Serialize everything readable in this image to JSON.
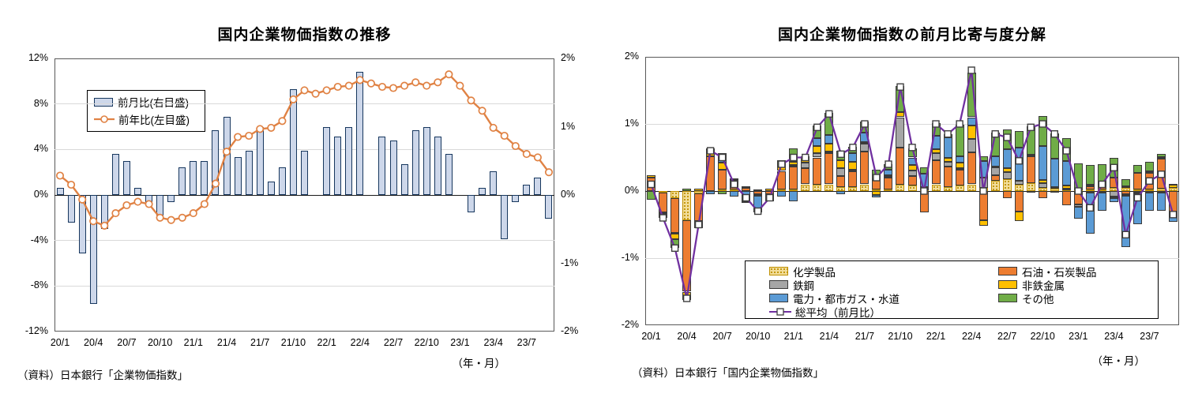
{
  "chart_data": [
    {
      "type": "bar+line",
      "title": "国内企業物価指数の推移",
      "source": "（資料）日本銀行「企業物価指数」",
      "axis_unit_note": "（年・月）",
      "categories": [
        "20/1",
        "20/2",
        "20/3",
        "20/4",
        "20/5",
        "20/6",
        "20/7",
        "20/8",
        "20/9",
        "20/10",
        "20/11",
        "20/12",
        "21/1",
        "21/2",
        "21/3",
        "21/4",
        "21/5",
        "21/6",
        "21/7",
        "21/8",
        "21/9",
        "21/10",
        "21/11",
        "21/12",
        "22/1",
        "22/2",
        "22/3",
        "22/4",
        "22/5",
        "22/6",
        "22/7",
        "22/8",
        "22/9",
        "22/10",
        "22/11",
        "22/12",
        "23/1",
        "23/2",
        "23/3",
        "23/4",
        "23/5",
        "23/6",
        "23/7",
        "23/8",
        "23/9"
      ],
      "x_tick_labels": [
        "20/1",
        "20/4",
        "20/7",
        "20/10",
        "21/1",
        "21/4",
        "21/7",
        "21/10",
        "22/1",
        "22/4",
        "22/7",
        "22/10",
        "23/1",
        "23/4",
        "23/7"
      ],
      "left_axis": {
        "min": -12,
        "max": 12,
        "tick_labels": [
          "12%",
          "8%",
          "4%",
          "0%",
          "-4%",
          "-8%",
          "-12%"
        ]
      },
      "right_axis": {
        "min": -2,
        "max": 2,
        "tick_labels": [
          "2%",
          "1%",
          "0%",
          "-1%",
          "-2%"
        ]
      },
      "grid": true,
      "legend_position": "upper-left-inside",
      "series": [
        {
          "name": "前月比(右目盛)",
          "type": "bar",
          "axis": "right",
          "fill": "#cdd7ea",
          "stroke": "#17375e",
          "values": [
            0.1,
            -0.4,
            -0.85,
            -1.6,
            -0.5,
            0.6,
            0.5,
            0.1,
            -0.1,
            -0.3,
            -0.1,
            0.4,
            0.5,
            0.5,
            0.95,
            1.15,
            0.55,
            0.65,
            1.0,
            0.2,
            0.4,
            1.55,
            0.65,
            0.0,
            1.0,
            0.85,
            1.0,
            1.8,
            0.0,
            0.85,
            0.8,
            0.45,
            0.95,
            1.0,
            0.85,
            0.6,
            0.0,
            -0.25,
            0.1,
            0.35,
            -0.65,
            -0.1,
            0.15,
            0.25,
            -0.35
          ]
        },
        {
          "name": "前年比(左目盛)",
          "type": "line",
          "axis": "left",
          "stroke": "#e08244",
          "marker": "circle",
          "values": [
            1.7,
            0.9,
            -0.4,
            -2.3,
            -2.7,
            -1.6,
            -0.9,
            -0.6,
            -0.8,
            -2.0,
            -2.2,
            -2.0,
            -1.6,
            -0.8,
            1.0,
            3.8,
            5.1,
            5.2,
            5.8,
            5.9,
            6.5,
            8.4,
            9.2,
            8.9,
            9.2,
            9.5,
            9.6,
            10.1,
            9.8,
            9.5,
            9.4,
            9.6,
            9.9,
            9.6,
            9.9,
            10.6,
            9.6,
            8.3,
            7.4,
            5.9,
            5.2,
            4.3,
            3.6,
            3.3,
            2.0
          ]
        }
      ]
    },
    {
      "type": "stacked-bar+line",
      "title": "国内企業物価指数の前月比寄与度分解",
      "source": "（資料）日本銀行「国内企業物価指数」",
      "axis_unit_note": "（年・月）",
      "categories": [
        "20/1",
        "20/2",
        "20/3",
        "20/4",
        "20/5",
        "20/6",
        "20/7",
        "20/8",
        "20/9",
        "20/10",
        "20/11",
        "20/12",
        "21/1",
        "21/2",
        "21/3",
        "21/4",
        "21/5",
        "21/6",
        "21/7",
        "21/8",
        "21/9",
        "21/10",
        "21/11",
        "21/12",
        "22/1",
        "22/2",
        "22/3",
        "22/4",
        "22/5",
        "22/6",
        "22/7",
        "22/8",
        "22/9",
        "22/10",
        "22/11",
        "22/12",
        "23/1",
        "23/2",
        "23/3",
        "23/4",
        "23/5",
        "23/6",
        "23/7",
        "23/8",
        "23/9"
      ],
      "x_tick_labels": [
        "20/1",
        "20/4",
        "20/7",
        "20/10",
        "21/1",
        "21/4",
        "21/7",
        "21/10",
        "22/1",
        "22/4",
        "22/7",
        "22/10",
        "23/1",
        "23/4",
        "23/7"
      ],
      "axis": {
        "min": -2,
        "max": 2,
        "tick_labels": [
          "2%",
          "1%",
          "0%",
          "-1%",
          "-2%"
        ]
      },
      "grid": true,
      "series": [
        {
          "name": "化学製品",
          "fill": "#f2dd9a",
          "pattern_dot_color": "#bf9000",
          "values": [
            0,
            -0.02,
            -0.1,
            -0.44,
            -0.03,
            0,
            0.02,
            0.02,
            0,
            0,
            0,
            0.02,
            0.02,
            0.1,
            0.1,
            0.1,
            0.06,
            0.06,
            0.1,
            0.02,
            0.02,
            0.1,
            0.08,
            0.02,
            0.1,
            0.06,
            0.08,
            0.1,
            0.05,
            0.15,
            0.18,
            0.1,
            0.12,
            0.05,
            0.03,
            0.02,
            0.02,
            0.02,
            0.02,
            0.05,
            0.05,
            0.02,
            0.02,
            0.03,
            0.05
          ]
        },
        {
          "name": "石油・石炭製品",
          "fill": "#ed7d31",
          "values": [
            0.2,
            -0.3,
            -0.52,
            -1.06,
            -0.42,
            0.52,
            0.3,
            0.1,
            0.05,
            -0.05,
            -0.05,
            0.28,
            0.35,
            0.24,
            0.4,
            0.47,
            0.16,
            0.24,
            0.49,
            0.14,
            0.18,
            0.55,
            0.14,
            -0.32,
            0.36,
            0.3,
            0.24,
            0.48,
            -0.44,
            0.08,
            -0.11,
            -0.3,
            0.4,
            -0.1,
            -0.02,
            -0.21,
            -0.2,
            0.05,
            0.07,
            0.15,
            -0.05,
            0.25,
            0.25,
            0.45,
            -0.35
          ]
        },
        {
          "name": "鉄鋼",
          "fill": "#a6a6a6",
          "values": [
            0,
            0,
            -0.02,
            0,
            -0.02,
            0,
            0,
            0,
            0,
            -0.02,
            0,
            0,
            0.02,
            0.08,
            0.07,
            0.02,
            0.12,
            0.02,
            0.12,
            0.02,
            0.02,
            0.45,
            0.09,
            0.02,
            0.1,
            0.08,
            0.02,
            0.2,
            0.15,
            0.12,
            0.1,
            0.05,
            -0.02,
            0.07,
            0.03,
            0.02,
            -0.04,
            -0.02,
            -0.02,
            -0.08,
            -0.02,
            -0.02,
            -0.02,
            -0.02,
            -0.02
          ]
        },
        {
          "name": "非鉄金属",
          "fill": "#ffc000",
          "values": [
            0.04,
            -0.02,
            -0.08,
            -0.12,
            0.04,
            0.05,
            0.1,
            0.04,
            0.02,
            0.02,
            0.03,
            0.06,
            0.05,
            0.09,
            0.1,
            0.12,
            0.12,
            0.12,
            0.02,
            -0.06,
            0.02,
            0.08,
            0.08,
            0.02,
            0.06,
            0.06,
            0.08,
            0.2,
            -0.08,
            0.02,
            0.06,
            -0.15,
            0.02,
            0.05,
            0.0,
            0.04,
            0.02,
            0.02,
            0.02,
            -0.03,
            0.02,
            -0.02,
            0.02,
            0.03,
            0.04
          ]
        },
        {
          "name": "電力・都市ガス・水道",
          "fill": "#5b9bd5",
          "values": [
            0,
            -0.04,
            0,
            0,
            0,
            -0.05,
            0.14,
            -0.08,
            -0.15,
            -0.22,
            -0.08,
            -0.08,
            -0.15,
            0,
            0.12,
            0.12,
            -0.05,
            0.12,
            0.14,
            -0.04,
            0.08,
            0,
            0.11,
            0.2,
            0.2,
            0.3,
            0.1,
            0.12,
            0.25,
            0.15,
            0.28,
            0.5,
            0,
            0.5,
            0.42,
            0.37,
            -0.17,
            -0.62,
            -0.27,
            -0.05,
            -0.76,
            -0.46,
            -0.27,
            -0.28,
            -0.09
          ]
        },
        {
          "name": "その他",
          "fill": "#70ad47",
          "values": [
            -0.13,
            -0.02,
            -0.13,
            0.04,
            -0.08,
            0.07,
            -0.05,
            0.03,
            -0.02,
            -0.03,
            -0.02,
            0.1,
            0.2,
            0.01,
            0.19,
            0.34,
            0.14,
            0.1,
            0.17,
            0.14,
            0.08,
            0.38,
            0.14,
            0.09,
            0.19,
            0.05,
            0.47,
            0.67,
            0.07,
            0.35,
            0.3,
            0.25,
            0.43,
            0.45,
            0.38,
            0.34,
            0.37,
            0.3,
            0.29,
            0.3,
            0.11,
            0.12,
            0.15,
            0.04,
            0.02
          ]
        }
      ],
      "line_series": {
        "name": "総平均（前月比）",
        "stroke": "#7030a0",
        "marker": "square",
        "marker_stroke": "#3f3f3f",
        "values": [
          0.1,
          -0.4,
          -0.85,
          -1.6,
          -0.5,
          0.6,
          0.5,
          0.1,
          -0.1,
          -0.3,
          -0.1,
          0.4,
          0.5,
          0.5,
          0.95,
          1.15,
          0.55,
          0.65,
          1.0,
          0.2,
          0.4,
          1.55,
          0.65,
          0.0,
          1.0,
          0.85,
          1.0,
          1.8,
          0.0,
          0.85,
          0.8,
          0.45,
          0.95,
          1.0,
          0.85,
          0.6,
          0.0,
          -0.25,
          0.1,
          0.35,
          -0.65,
          -0.1,
          0.15,
          0.25,
          -0.35
        ]
      }
    }
  ]
}
